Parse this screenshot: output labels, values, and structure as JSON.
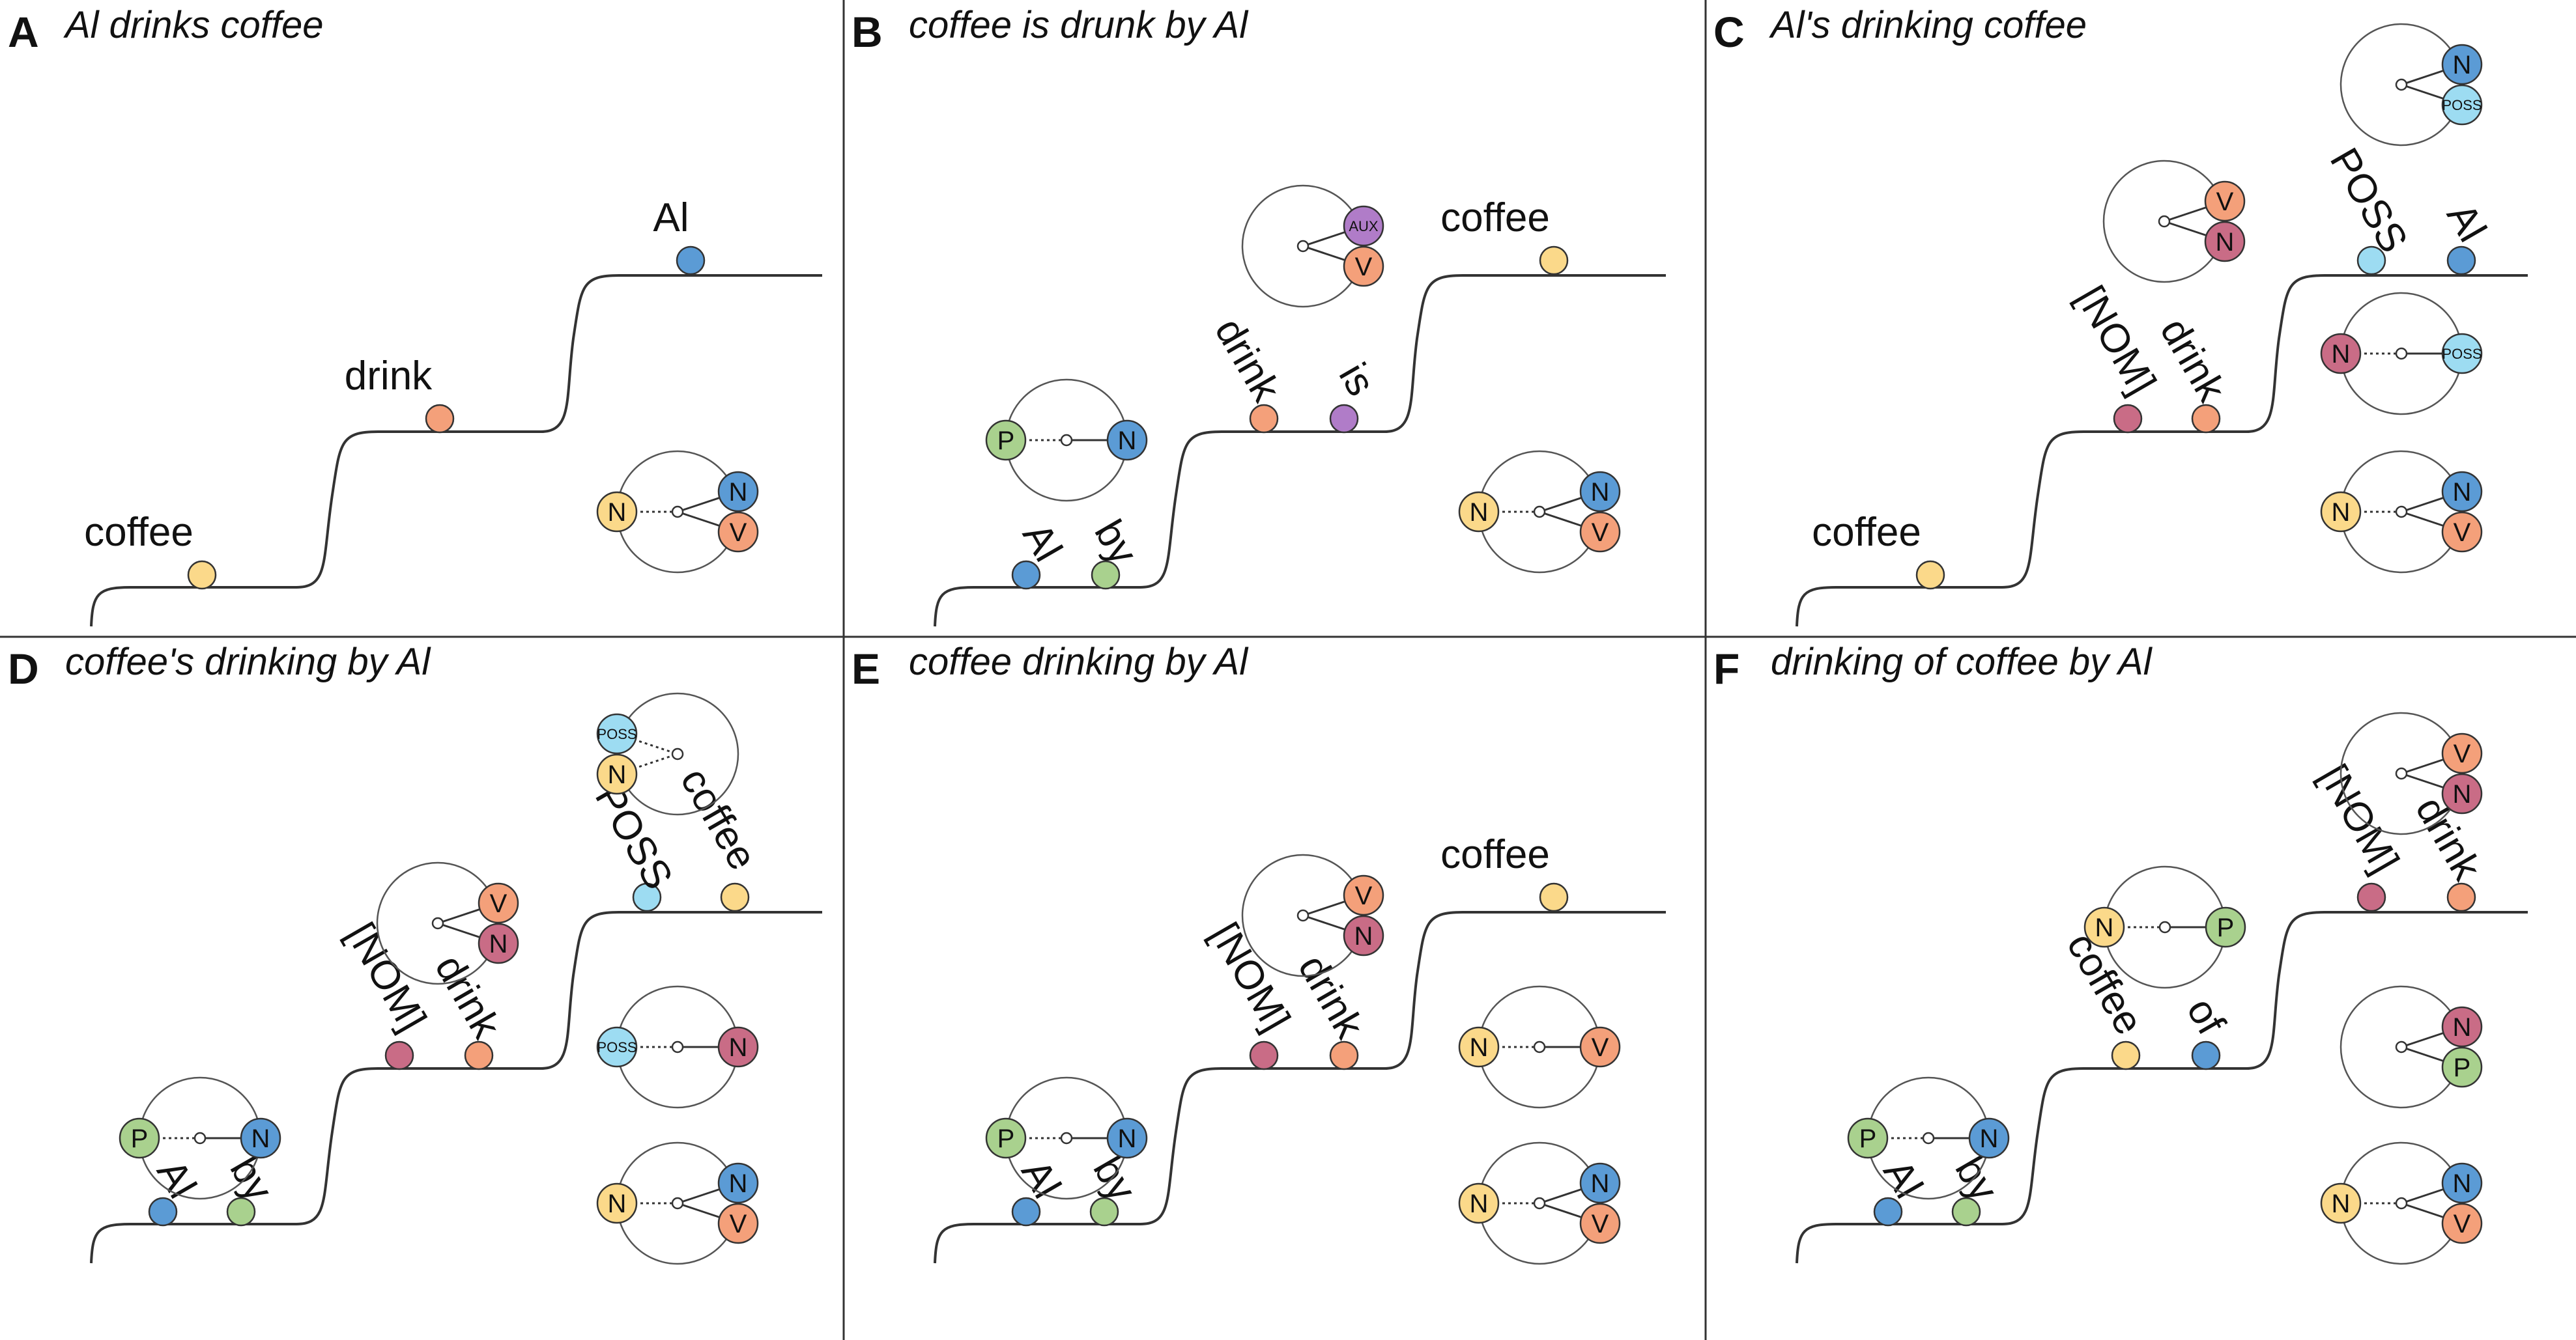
{
  "colors": {
    "N": "#5b9bd5",
    "V": "#f4a07a",
    "Nyellow": "#fbd98a",
    "P": "#a9d18e",
    "AUX": "#b07cc8",
    "POSS": "#9ddcf2",
    "NOM": "#c96c86",
    "line": "#333333",
    "border": "#333333"
  },
  "panels": [
    {
      "letter": "A",
      "title": "Al drinks coffee",
      "words": [
        "coffee",
        "drink",
        "Al"
      ],
      "glyphs": [
        {
          "label": "N"
        },
        {
          "label": "N"
        },
        {
          "label": "V"
        }
      ]
    },
    {
      "letter": "B",
      "title": "coffee is drunk by Al",
      "words": [
        "Al",
        "by",
        "drink",
        "is",
        "coffee"
      ],
      "glyphs": [
        {
          "label": "P"
        },
        {
          "label": "N"
        },
        {
          "label": "AUX"
        },
        {
          "label": "V"
        },
        {
          "label": "N"
        },
        {
          "label": "N"
        },
        {
          "label": "V"
        }
      ]
    },
    {
      "letter": "C",
      "title": "Al's drinking coffee",
      "words": [
        "coffee",
        "[NOM]",
        "drink",
        "POSS",
        "Al"
      ],
      "glyphs": [
        {
          "label": "N"
        },
        {
          "label": "POSS"
        },
        {
          "label": "V"
        },
        {
          "label": "N"
        },
        {
          "label": "N"
        },
        {
          "label": "POSS"
        },
        {
          "label": "N"
        },
        {
          "label": "N"
        },
        {
          "label": "V"
        }
      ]
    },
    {
      "letter": "D",
      "title": "coffee's drinking by Al",
      "words": [
        "Al",
        "by",
        "[NOM]",
        "drink",
        "POSS",
        "coffee"
      ],
      "glyphs": [
        {
          "label": "POSS"
        },
        {
          "label": "N"
        },
        {
          "label": "V"
        },
        {
          "label": "N"
        },
        {
          "label": "P"
        },
        {
          "label": "N"
        },
        {
          "label": "POSS"
        },
        {
          "label": "N"
        },
        {
          "label": "N"
        },
        {
          "label": "N"
        },
        {
          "label": "V"
        }
      ]
    },
    {
      "letter": "E",
      "title": "coffee drinking by Al",
      "words": [
        "Al",
        "by",
        "[NOM]",
        "drink",
        "coffee"
      ],
      "glyphs": [
        {
          "label": "V"
        },
        {
          "label": "N"
        },
        {
          "label": "P"
        },
        {
          "label": "N"
        },
        {
          "label": "N"
        },
        {
          "label": "V"
        },
        {
          "label": "N"
        },
        {
          "label": "N"
        },
        {
          "label": "V"
        }
      ]
    },
    {
      "letter": "F",
      "title": "drinking of coffee by Al",
      "words": [
        "Al",
        "by",
        "coffee",
        "of",
        "[NOM]",
        "drink"
      ],
      "glyphs": [
        {
          "label": "V"
        },
        {
          "label": "N"
        },
        {
          "label": "N"
        },
        {
          "label": "P"
        },
        {
          "label": "P"
        },
        {
          "label": "N"
        },
        {
          "label": "N"
        },
        {
          "label": "P"
        },
        {
          "label": "N"
        },
        {
          "label": "N"
        },
        {
          "label": "V"
        }
      ]
    }
  ]
}
